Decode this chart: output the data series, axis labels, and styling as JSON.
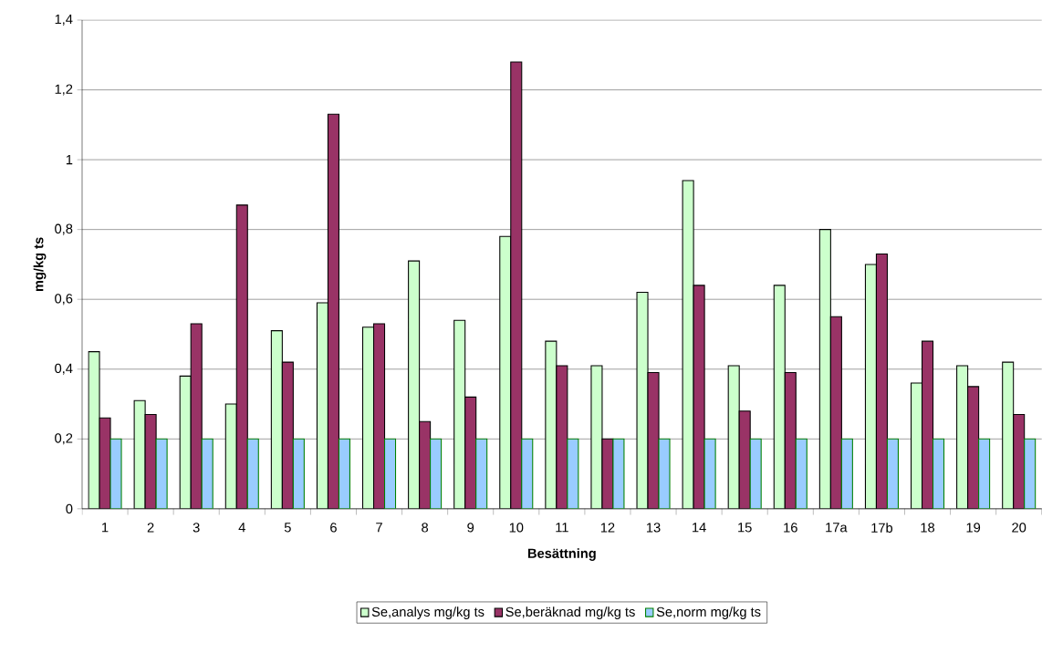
{
  "chart_data": {
    "type": "bar",
    "xlabel": "Besättning",
    "ylabel": "mg/kg ts",
    "categories": [
      "1",
      "2",
      "3",
      "4",
      "5",
      "6",
      "7",
      "8",
      "9",
      "10",
      "11",
      "12",
      "13",
      "14",
      "15",
      "16",
      "17a",
      "17b",
      "18",
      "19",
      "20"
    ],
    "series": [
      {
        "name": "Se,analys mg/kg ts",
        "color": "#ccffcc",
        "values": [
          0.45,
          0.31,
          0.38,
          0.3,
          0.51,
          0.59,
          0.52,
          0.71,
          0.54,
          0.78,
          0.48,
          0.41,
          0.62,
          0.94,
          0.41,
          0.64,
          0.8,
          0.7,
          0.36,
          0.41,
          0.42
        ]
      },
      {
        "name": "Se,beräknad mg/kg ts",
        "color": "#993366",
        "values": [
          0.26,
          0.27,
          0.53,
          0.87,
          0.42,
          1.13,
          0.53,
          0.25,
          0.32,
          1.28,
          0.41,
          0.2,
          0.39,
          0.64,
          0.28,
          0.39,
          0.55,
          0.73,
          0.48,
          0.35,
          0.27
        ]
      },
      {
        "name": "Se,norm mg/kg ts",
        "color": "#99ccff",
        "values": [
          0.2,
          0.2,
          0.2,
          0.2,
          0.2,
          0.2,
          0.2,
          0.2,
          0.2,
          0.2,
          0.2,
          0.2,
          0.2,
          0.2,
          0.2,
          0.2,
          0.2,
          0.2,
          0.2,
          0.2,
          0.2
        ]
      }
    ],
    "ylim": [
      0,
      1.4
    ],
    "yticks": [
      0,
      {
        "value": 0.2,
        "label": "0,2"
      },
      {
        "value": 0.4,
        "label": "0,4"
      },
      {
        "value": 0.6,
        "label": "0,6"
      },
      {
        "value": 0.8,
        "label": "0,8"
      },
      1,
      {
        "value": 1.2,
        "label": "1,2"
      },
      {
        "value": 1.4,
        "label": "1,4"
      }
    ],
    "grid": "y",
    "legend": "bottom"
  }
}
